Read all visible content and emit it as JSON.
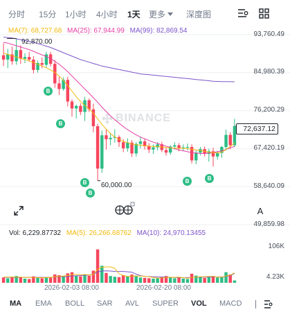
{
  "timeframes": [
    {
      "label": "分时",
      "active": false
    },
    {
      "label": "15分",
      "active": false
    },
    {
      "label": "1小时",
      "active": false
    },
    {
      "label": "4小时",
      "active": false
    },
    {
      "label": "1天",
      "active": true
    }
  ],
  "more_label": "更多",
  "depth_label": "深度图",
  "ma_legend": {
    "ma7": "MA(7): 68,727.68",
    "ma25": "MA(25): 67,944.99",
    "ma99": "MA(99): 82,869.54"
  },
  "price_axis": [
    "93,760.49",
    "84,980.39",
    "76,200.29",
    "67,420.19",
    "58,640.09",
    "49,859.98"
  ],
  "current_price": "72,637.12",
  "high_label": "92,870.00",
  "low_label": "60,000.00",
  "watermark": "BINANCE",
  "marker_letter": "B",
  "scale_toggle": "A",
  "volume_legend": {
    "vol": "Vol: 6,229.87732",
    "ma5": "MA(5): 26,266.68762",
    "ma10": "MA(10): 24,970.13455"
  },
  "volume_axis": [
    "106K",
    "4.23K"
  ],
  "date_labels": [
    "2026-02-03 08:00",
    "2026-02-20 08:00"
  ],
  "indicators": [
    {
      "label": "MA",
      "active": true
    },
    {
      "label": "EMA",
      "active": false
    },
    {
      "label": "BOLL",
      "active": false
    },
    {
      "label": "SAR",
      "active": false
    },
    {
      "label": "AVL",
      "active": false
    },
    {
      "label": "SUPER",
      "active": false
    },
    {
      "label": "VOL",
      "active": true
    },
    {
      "label": "MACD",
      "active": false
    }
  ],
  "colors": {
    "up": "#2ebd85",
    "down": "#f6465d",
    "ma7": "#f0b90b",
    "ma25": "#e63fa5",
    "ma99": "#7d54c9",
    "text_secondary": "#707a8a"
  },
  "chart_data": {
    "type": "candlestick",
    "y_range": [
      49859.98,
      93760.49
    ],
    "candles": [
      {
        "o": 89000,
        "h": 91800,
        "l": 86500,
        "c": 88000
      },
      {
        "o": 88000,
        "h": 90500,
        "l": 86000,
        "c": 89200
      },
      {
        "o": 89200,
        "h": 91000,
        "l": 86800,
        "c": 87600
      },
      {
        "o": 87600,
        "h": 92870,
        "l": 86800,
        "c": 90200
      },
      {
        "o": 90200,
        "h": 91300,
        "l": 87000,
        "c": 88200
      },
      {
        "o": 88200,
        "h": 89500,
        "l": 87200,
        "c": 88600
      },
      {
        "o": 88600,
        "h": 89800,
        "l": 87500,
        "c": 88000
      },
      {
        "o": 88000,
        "h": 88800,
        "l": 84800,
        "c": 85600
      },
      {
        "o": 85600,
        "h": 87800,
        "l": 85000,
        "c": 87200
      },
      {
        "o": 87200,
        "h": 88500,
        "l": 86000,
        "c": 86800
      },
      {
        "o": 86800,
        "h": 89800,
        "l": 86200,
        "c": 89200
      },
      {
        "o": 89200,
        "h": 89800,
        "l": 86400,
        "c": 87000
      },
      {
        "o": 87000,
        "h": 87900,
        "l": 81500,
        "c": 82500
      },
      {
        "o": 82500,
        "h": 84000,
        "l": 79800,
        "c": 81200
      },
      {
        "o": 81200,
        "h": 83900,
        "l": 80800,
        "c": 83300
      },
      {
        "o": 83300,
        "h": 84000,
        "l": 77200,
        "c": 78300
      },
      {
        "o": 78300,
        "h": 78800,
        "l": 74800,
        "c": 76700
      },
      {
        "o": 76700,
        "h": 77600,
        "l": 74400,
        "c": 77300
      },
      {
        "o": 77300,
        "h": 77900,
        "l": 75200,
        "c": 75900
      },
      {
        "o": 75900,
        "h": 79400,
        "l": 73800,
        "c": 78600
      },
      {
        "o": 78600,
        "h": 79000,
        "l": 75900,
        "c": 76500
      },
      {
        "o": 76500,
        "h": 77800,
        "l": 71200,
        "c": 72600
      },
      {
        "o": 72600,
        "h": 73200,
        "l": 60000,
        "c": 62800
      },
      {
        "o": 62800,
        "h": 71600,
        "l": 61800,
        "c": 70500
      },
      {
        "o": 70500,
        "h": 71800,
        "l": 67200,
        "c": 69600
      },
      {
        "o": 69600,
        "h": 70800,
        "l": 68200,
        "c": 69900
      },
      {
        "o": 69900,
        "h": 71900,
        "l": 68800,
        "c": 70100
      },
      {
        "o": 70100,
        "h": 70500,
        "l": 67800,
        "c": 68900
      },
      {
        "o": 68900,
        "h": 69600,
        "l": 66600,
        "c": 67500
      },
      {
        "o": 67500,
        "h": 69800,
        "l": 66700,
        "c": 68800
      },
      {
        "o": 68800,
        "h": 69400,
        "l": 65500,
        "c": 66300
      },
      {
        "o": 66300,
        "h": 68900,
        "l": 65600,
        "c": 68500
      },
      {
        "o": 68500,
        "h": 70200,
        "l": 67500,
        "c": 69100
      },
      {
        "o": 69100,
        "h": 69700,
        "l": 67200,
        "c": 68000
      },
      {
        "o": 68000,
        "h": 68700,
        "l": 66400,
        "c": 67200
      },
      {
        "o": 67200,
        "h": 68400,
        "l": 66200,
        "c": 67700
      },
      {
        "o": 67700,
        "h": 68900,
        "l": 67000,
        "c": 68400
      },
      {
        "o": 68400,
        "h": 69000,
        "l": 66600,
        "c": 67100
      },
      {
        "o": 67100,
        "h": 67800,
        "l": 65800,
        "c": 66500
      },
      {
        "o": 66500,
        "h": 68200,
        "l": 66000,
        "c": 67900
      },
      {
        "o": 67900,
        "h": 68900,
        "l": 67200,
        "c": 68200
      },
      {
        "o": 68200,
        "h": 68700,
        "l": 66800,
        "c": 67500
      },
      {
        "o": 67500,
        "h": 68400,
        "l": 66900,
        "c": 67700
      },
      {
        "o": 67700,
        "h": 68600,
        "l": 67000,
        "c": 67800
      },
      {
        "o": 67800,
        "h": 68400,
        "l": 64000,
        "c": 64700
      },
      {
        "o": 64700,
        "h": 67000,
        "l": 63800,
        "c": 66500
      },
      {
        "o": 66500,
        "h": 67800,
        "l": 65900,
        "c": 67300
      },
      {
        "o": 67300,
        "h": 67900,
        "l": 65600,
        "c": 66200
      },
      {
        "o": 66200,
        "h": 67400,
        "l": 64400,
        "c": 66800
      },
      {
        "o": 66800,
        "h": 67600,
        "l": 63300,
        "c": 65600
      },
      {
        "o": 65600,
        "h": 66900,
        "l": 64900,
        "c": 66400
      },
      {
        "o": 66400,
        "h": 68000,
        "l": 65300,
        "c": 67800
      },
      {
        "o": 67800,
        "h": 71800,
        "l": 67000,
        "c": 70600
      },
      {
        "o": 70600,
        "h": 71200,
        "l": 67300,
        "c": 68200
      },
      {
        "o": 68200,
        "h": 74300,
        "l": 67800,
        "c": 72637.12
      }
    ],
    "ma7": [
      89500,
      89200,
      88900,
      88600,
      88300,
      88000,
      87700,
      87300,
      86900,
      86500,
      86100,
      85600,
      85000,
      84200,
      83200,
      82000,
      80700,
      79400,
      78300,
      77400,
      76600,
      75600,
      74300,
      73000,
      71900,
      70900,
      70100,
      69600,
      69100,
      68800,
      68500,
      68300,
      68200,
      68100,
      68000,
      67900,
      67900,
      67800,
      67700,
      67600,
      67500,
      67500,
      67500,
      67400,
      67300,
      67100,
      67000,
      66800,
      66600,
      66500,
      66400,
      66600,
      67200,
      67900,
      68727.68
    ],
    "ma25": [
      92000,
      91800,
      91500,
      91200,
      90900,
      90600,
      90300,
      89900,
      89500,
      89100,
      88700,
      88200,
      87600,
      86900,
      86100,
      85200,
      84200,
      83200,
      82200,
      81200,
      80200,
      79200,
      78100,
      77000,
      76000,
      75000,
      74100,
      73300,
      72500,
      71800,
      71200,
      70600,
      70100,
      69700,
      69300,
      68900,
      68600,
      68300,
      68000,
      67700,
      67400,
      67100,
      66900,
      66700,
      66500,
      66400,
      66300,
      66300,
      66400,
      66500,
      66700,
      66900,
      67200,
      67600,
      67944.99
    ],
    "ma99": [
      93200,
      93100,
      93000,
      92800,
      92600,
      92400,
      92200,
      92000,
      91700,
      91400,
      91100,
      90800,
      90400,
      90000,
      89600,
      89200,
      88800,
      88400,
      88000,
      87700,
      87400,
      87100,
      86800,
      86500,
      86300,
      86100,
      85900,
      85700,
      85500,
      85300,
      85100,
      84900,
      84700,
      84600,
      84500,
      84400,
      84300,
      84200,
      84100,
      84000,
      83900,
      83800,
      83700,
      83600,
      83500,
      83400,
      83300,
      83200,
      83100,
      83000,
      82950,
      82920,
      82900,
      82880,
      82869.54
    ],
    "volume_range": [
      0,
      106000
    ],
    "volumes": [
      14000,
      12000,
      16000,
      18000,
      15000,
      11000,
      10000,
      17000,
      13000,
      12000,
      15000,
      14000,
      22000,
      20000,
      16000,
      25000,
      28000,
      18000,
      17000,
      22000,
      19000,
      32000,
      88000,
      45000,
      26000,
      18000,
      16000,
      15000,
      20000,
      17000,
      22000,
      19000,
      14000,
      13000,
      12000,
      11000,
      12000,
      16000,
      18000,
      14000,
      12000,
      13000,
      11000,
      10000,
      24000,
      19000,
      15000,
      13000,
      16000,
      18000,
      14000,
      16000,
      28000,
      22000,
      6229.87732
    ],
    "vol_ma5": [
      15000,
      15000,
      15000,
      15000,
      15000,
      14000,
      14000,
      14000,
      13500,
      13500,
      14000,
      14000,
      16000,
      17000,
      18000,
      19000,
      22000,
      22000,
      21000,
      22000,
      21000,
      22000,
      36000,
      41000,
      42000,
      42000,
      38000,
      24000,
      19000,
      17000,
      18000,
      18000,
      18000,
      17000,
      16000,
      14000,
      12500,
      13000,
      14000,
      14500,
      14500,
      15000,
      13500,
      12000,
      14000,
      15000,
      16000,
      16000,
      17000,
      17000,
      15000,
      15000,
      18000,
      20000,
      26266.68762
    ],
    "vol_ma10": [
      14500,
      14500,
      14500,
      14500,
      14500,
      14500,
      14500,
      14500,
      14500,
      14500,
      14500,
      14500,
      15500,
      16000,
      16500,
      17000,
      18000,
      18500,
      19000,
      20000,
      21000,
      22000,
      29000,
      31000,
      31500,
      31000,
      30000,
      30000,
      30000,
      29000,
      28000,
      23000,
      19000,
      17000,
      16500,
      16000,
      15500,
      15000,
      15000,
      14500,
      14000,
      13500,
      13500,
      13500,
      14500,
      15000,
      15000,
      15000,
      15000,
      15500,
      15500,
      15500,
      17000,
      18500,
      24970.13455
    ]
  }
}
